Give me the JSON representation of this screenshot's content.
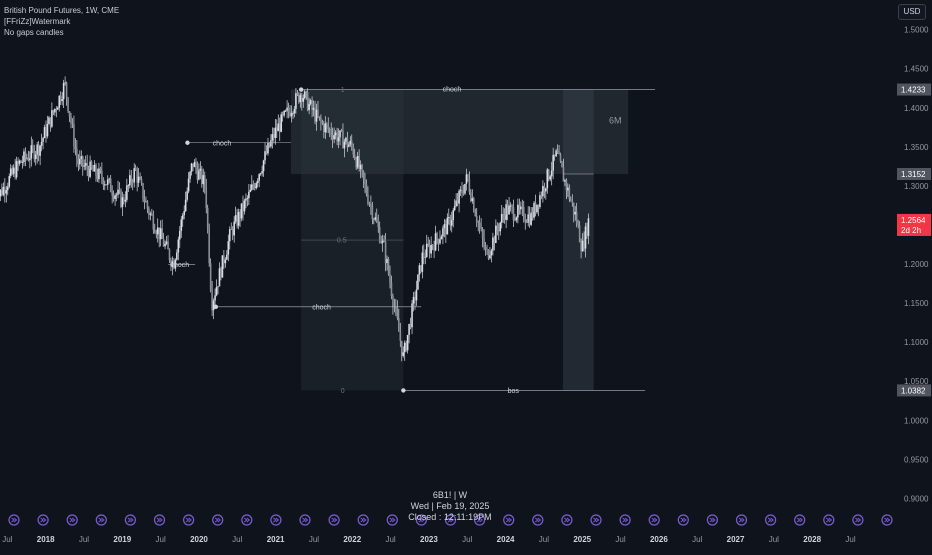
{
  "header": {
    "title": "British Pound Futures, 1W, CME",
    "indicator1": "[FFriZz]Watermark",
    "indicator2": "No gaps candles",
    "currency": "USD"
  },
  "watermark": {
    "symbol": "6B1! | W",
    "date": "Wed | Feb 19, 2025",
    "status": "Closed : 12:11:19PM"
  },
  "chart_data": {
    "type": "candlestick",
    "ylim": [
      0.88,
      1.52
    ],
    "y_ticks": [
      "1.5000",
      "1.4500",
      "1.4000",
      "1.3500",
      "1.3000",
      "1.2500",
      "1.2000",
      "1.1500",
      "1.1000",
      "1.0500",
      "1.0000",
      "0.9500",
      "0.9000"
    ],
    "x_ticks": [
      "Jul",
      "2018",
      "Jul",
      "2019",
      "Jul",
      "2020",
      "Jul",
      "2021",
      "Jul",
      "2022",
      "Jul",
      "2023",
      "Jul",
      "2024",
      "Jul",
      "2025",
      "Jul",
      "2026",
      "Jul",
      "2027",
      "Jul",
      "2028",
      "Jul"
    ],
    "x_range": [
      "2017-05",
      "2028-11"
    ],
    "price_path": [
      {
        "t": "2017-05",
        "p": 1.28
      },
      {
        "t": "2017-09",
        "p": 1.33
      },
      {
        "t": "2017-12",
        "p": 1.35
      },
      {
        "t": "2018-04",
        "p": 1.43
      },
      {
        "t": "2018-06",
        "p": 1.33
      },
      {
        "t": "2018-10",
        "p": 1.31
      },
      {
        "t": "2019-01",
        "p": 1.28
      },
      {
        "t": "2019-03",
        "p": 1.32
      },
      {
        "t": "2019-05",
        "p": 1.27
      },
      {
        "t": "2019-09",
        "p": 1.2
      },
      {
        "t": "2019-12",
        "p": 1.33
      },
      {
        "t": "2020-02",
        "p": 1.3
      },
      {
        "t": "2020-03",
        "p": 1.15
      },
      {
        "t": "2020-06",
        "p": 1.24
      },
      {
        "t": "2020-09",
        "p": 1.29
      },
      {
        "t": "2021-01",
        "p": 1.37
      },
      {
        "t": "2021-05",
        "p": 1.42
      },
      {
        "t": "2021-08",
        "p": 1.38
      },
      {
        "t": "2022-01",
        "p": 1.35
      },
      {
        "t": "2022-06",
        "p": 1.22
      },
      {
        "t": "2022-09",
        "p": 1.08
      },
      {
        "t": "2022-12",
        "p": 1.21
      },
      {
        "t": "2023-04",
        "p": 1.25
      },
      {
        "t": "2023-07",
        "p": 1.31
      },
      {
        "t": "2023-10",
        "p": 1.21
      },
      {
        "t": "2024-01",
        "p": 1.27
      },
      {
        "t": "2024-05",
        "p": 1.26
      },
      {
        "t": "2024-09",
        "p": 1.34
      },
      {
        "t": "2024-12",
        "p": 1.26
      },
      {
        "t": "2025-01",
        "p": 1.22
      },
      {
        "t": "2025-02",
        "p": 1.256
      }
    ],
    "annotations": {
      "choch_labels": [
        "choch",
        "choch",
        "choch",
        "choch"
      ],
      "bos_label": "bos",
      "fib_levels": [
        "1",
        "0.5",
        "0"
      ],
      "timeframe_label": "6M"
    },
    "price_labels": {
      "high": "1.4233",
      "mid": "1.3152",
      "last": "1.2564",
      "last_countdown": "2d 2h",
      "low": "1.0382"
    },
    "colors": {
      "background": "#0f141c",
      "candle": "#d9dde4",
      "zone": "#2f3640",
      "last_price": "#f23645",
      "nav_button": "#7b5cd6"
    }
  }
}
